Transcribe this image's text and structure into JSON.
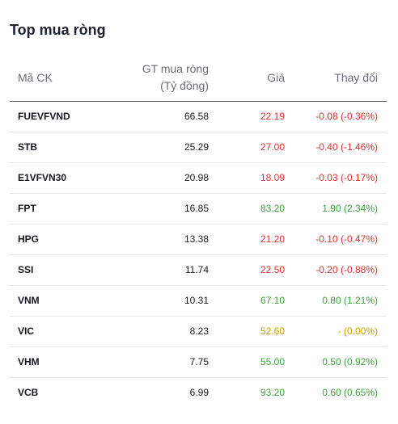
{
  "widget": {
    "title": "Top mua ròng",
    "columns": {
      "symbol": "Mã CK",
      "value_line1": "GT mua ròng",
      "value_line2": "(Tỷ đồng)",
      "price": "Giá",
      "change": "Thay đổi"
    },
    "rows": [
      {
        "symbol": "FUEVFVND",
        "value": "66.58",
        "price": "22.19",
        "change": "-0.08 (-0.36%)",
        "trend": "down"
      },
      {
        "symbol": "STB",
        "value": "25.29",
        "price": "27.00",
        "change": "-0.40 (-1.46%)",
        "trend": "down"
      },
      {
        "symbol": "E1VFVN30",
        "value": "20.98",
        "price": "18.09",
        "change": "-0.03 (-0.17%)",
        "trend": "down"
      },
      {
        "symbol": "FPT",
        "value": "16.85",
        "price": "83.20",
        "change": "1.90 (2.34%)",
        "trend": "up"
      },
      {
        "symbol": "HPG",
        "value": "13.38",
        "price": "21.20",
        "change": "-0.10 (-0.47%)",
        "trend": "down"
      },
      {
        "symbol": "SSI",
        "value": "11.74",
        "price": "22.50",
        "change": "-0.20 (-0.88%)",
        "trend": "down"
      },
      {
        "symbol": "VNM",
        "value": "10.31",
        "price": "67.10",
        "change": "0.80 (1.21%)",
        "trend": "up"
      },
      {
        "symbol": "VIC",
        "value": "8.23",
        "price": "52.60",
        "change": "- (0.00%)",
        "trend": "ref"
      },
      {
        "symbol": "VHM",
        "value": "7.75",
        "price": "55.00",
        "change": "0.50 (0.92%)",
        "trend": "up"
      },
      {
        "symbol": "VCB",
        "value": "6.99",
        "price": "93.20",
        "change": "0.60 (0.65%)",
        "trend": "up"
      }
    ],
    "colors": {
      "down": "#e0302f",
      "up": "#3fa33d",
      "ref": "#c9a200"
    }
  }
}
